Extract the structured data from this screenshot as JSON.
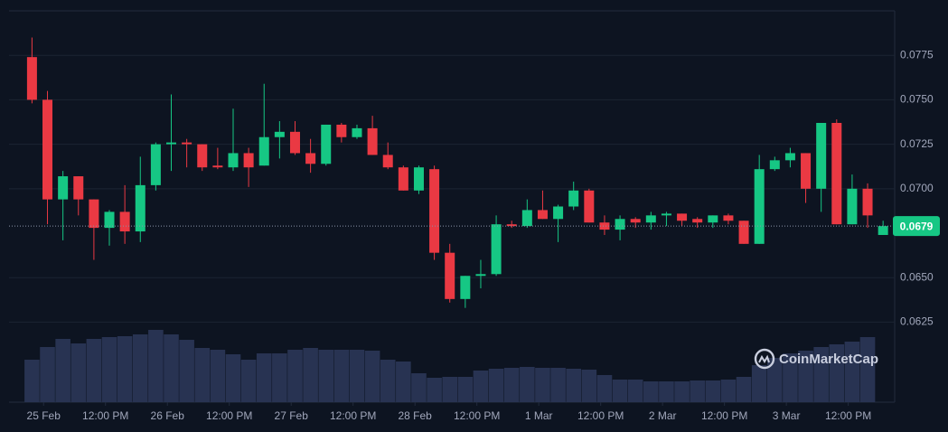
{
  "chart_data": {
    "type": "candlestick",
    "watermark": "CoinMarketCap",
    "x": [
      -2.25,
      0.75,
      3.75,
      6.75,
      9.75,
      12.75,
      15.75,
      18.75,
      21.75,
      24.75,
      27.75,
      30.75,
      33.75,
      36.75,
      39.75,
      42.75,
      45.75,
      48.75,
      51.75,
      54.75,
      57.75,
      60.75,
      63.75,
      66.75,
      69.75,
      72.75,
      75.75,
      78.75,
      81.75,
      84.75,
      87.75,
      90.75,
      93.75,
      96.75,
      99.75,
      102.75,
      105.75,
      108.75,
      111.75,
      114.75,
      117.75,
      120.75,
      123.75,
      126.75,
      129.75,
      132.75,
      135.75,
      138.75,
      141.75,
      144.75,
      147.75,
      150.75,
      153.75,
      156.75,
      159.75,
      162.75
    ],
    "open": [
      0.0774,
      0.075,
      0.0694,
      0.0707,
      0.0694,
      0.0678,
      0.0687,
      0.0676,
      0.0702,
      0.0725,
      0.0726,
      0.0725,
      0.0713,
      0.0712,
      0.072,
      0.0713,
      0.0729,
      0.0732,
      0.072,
      0.0714,
      0.0736,
      0.0729,
      0.0734,
      0.0719,
      0.0712,
      0.0699,
      0.0711,
      0.0664,
      0.0638,
      0.0651,
      0.0652,
      0.068,
      0.0679,
      0.0688,
      0.0683,
      0.069,
      0.0699,
      0.0681,
      0.0677,
      0.0683,
      0.0681,
      0.0685,
      0.0686,
      0.0683,
      0.0681,
      0.0685,
      0.0682,
      0.0669,
      0.0711,
      0.0716,
      0.072,
      0.07,
      0.0737,
      0.068,
      0.07,
      0.0674
    ],
    "high": [
      0.0785,
      0.0755,
      0.071,
      0.0707,
      0.0694,
      0.0688,
      0.0702,
      0.0718,
      0.0726,
      0.0753,
      0.0728,
      0.0725,
      0.0723,
      0.0745,
      0.0723,
      0.0759,
      0.0738,
      0.0738,
      0.0728,
      0.0736,
      0.0737,
      0.0736,
      0.0741,
      0.0726,
      0.0713,
      0.0713,
      0.0713,
      0.0669,
      0.0651,
      0.066,
      0.0685,
      0.0682,
      0.0694,
      0.0699,
      0.0691,
      0.0704,
      0.07,
      0.0685,
      0.0685,
      0.0684,
      0.0687,
      0.0687,
      0.0686,
      0.0684,
      0.0685,
      0.0686,
      0.0682,
      0.0719,
      0.0718,
      0.0723,
      0.072,
      0.0737,
      0.0739,
      0.0708,
      0.0703,
      0.0682
    ],
    "low": [
      0.0748,
      0.068,
      0.0671,
      0.0685,
      0.066,
      0.0668,
      0.0669,
      0.067,
      0.0699,
      0.071,
      0.0712,
      0.071,
      0.0711,
      0.071,
      0.0701,
      0.0713,
      0.0717,
      0.0719,
      0.0709,
      0.0713,
      0.0726,
      0.0728,
      0.0719,
      0.0711,
      0.0699,
      0.0697,
      0.066,
      0.0636,
      0.0633,
      0.0644,
      0.0651,
      0.0678,
      0.0678,
      0.0683,
      0.067,
      0.0688,
      0.0681,
      0.0674,
      0.0671,
      0.0678,
      0.0677,
      0.0679,
      0.0679,
      0.0678,
      0.0678,
      0.068,
      0.0669,
      0.0669,
      0.071,
      0.0712,
      0.0692,
      0.0687,
      0.068,
      0.068,
      0.0678,
      0.0674
    ],
    "close": [
      0.075,
      0.0694,
      0.0707,
      0.0694,
      0.0678,
      0.0687,
      0.0676,
      0.0702,
      0.0725,
      0.0726,
      0.0725,
      0.0712,
      0.0712,
      0.072,
      0.0712,
      0.0729,
      0.0732,
      0.072,
      0.0714,
      0.0736,
      0.0729,
      0.0734,
      0.0719,
      0.0712,
      0.0699,
      0.0712,
      0.0664,
      0.0638,
      0.0651,
      0.0652,
      0.068,
      0.0679,
      0.0688,
      0.0683,
      0.069,
      0.0699,
      0.0681,
      0.0677,
      0.0683,
      0.0681,
      0.0685,
      0.0686,
      0.0682,
      0.0681,
      0.0685,
      0.0682,
      0.0669,
      0.0711,
      0.0716,
      0.072,
      0.07,
      0.0737,
      0.068,
      0.07,
      0.0685,
      0.0679
    ],
    "volume": [
      47,
      61,
      70,
      65,
      70,
      72,
      73,
      75,
      80,
      75,
      69,
      60,
      58,
      53,
      47,
      54,
      54,
      58,
      60,
      58,
      58,
      58,
      57,
      47,
      45,
      32,
      27,
      28,
      28,
      35,
      37,
      38,
      39,
      38,
      38,
      37,
      36,
      30,
      25,
      25,
      23,
      23,
      23,
      24,
      24,
      25,
      28,
      41,
      49,
      54,
      57,
      61,
      64,
      67,
      72,
      null
    ],
    "volume_lim": [
      0,
      100
    ],
    "up_color": "#16c784",
    "down_color": "#ea3943",
    "volume_color": "#283352",
    "current_price": 0.0679,
    "xlim": [
      -6.7,
      165
    ],
    "xticks": [
      {
        "value": 0,
        "label": "25 Feb"
      },
      {
        "value": 12,
        "label": "12:00 PM"
      },
      {
        "value": 24,
        "label": "26 Feb"
      },
      {
        "value": 36,
        "label": "12:00 PM"
      },
      {
        "value": 48,
        "label": "27 Feb"
      },
      {
        "value": 60,
        "label": "12:00 PM"
      },
      {
        "value": 72,
        "label": "28 Feb"
      },
      {
        "value": 84,
        "label": "12:00 PM"
      },
      {
        "value": 96,
        "label": "1 Mar"
      },
      {
        "value": 108,
        "label": "12:00 PM"
      },
      {
        "value": 120,
        "label": "2 Mar"
      },
      {
        "value": 132,
        "label": "12:00 PM"
      },
      {
        "value": 144,
        "label": "3 Mar"
      },
      {
        "value": 156,
        "label": "12:00 PM"
      }
    ],
    "ylim": [
      0.058,
      0.08
    ],
    "yticks": [
      0.0625,
      {
        "value": 0.065,
        "label": "0.0650"
      },
      {
        "value": 0.07,
        "label": "0.0700"
      },
      0.0725,
      {
        "value": 0.075,
        "label": "0.0750"
      },
      0.0775
    ],
    "grid": true
  }
}
